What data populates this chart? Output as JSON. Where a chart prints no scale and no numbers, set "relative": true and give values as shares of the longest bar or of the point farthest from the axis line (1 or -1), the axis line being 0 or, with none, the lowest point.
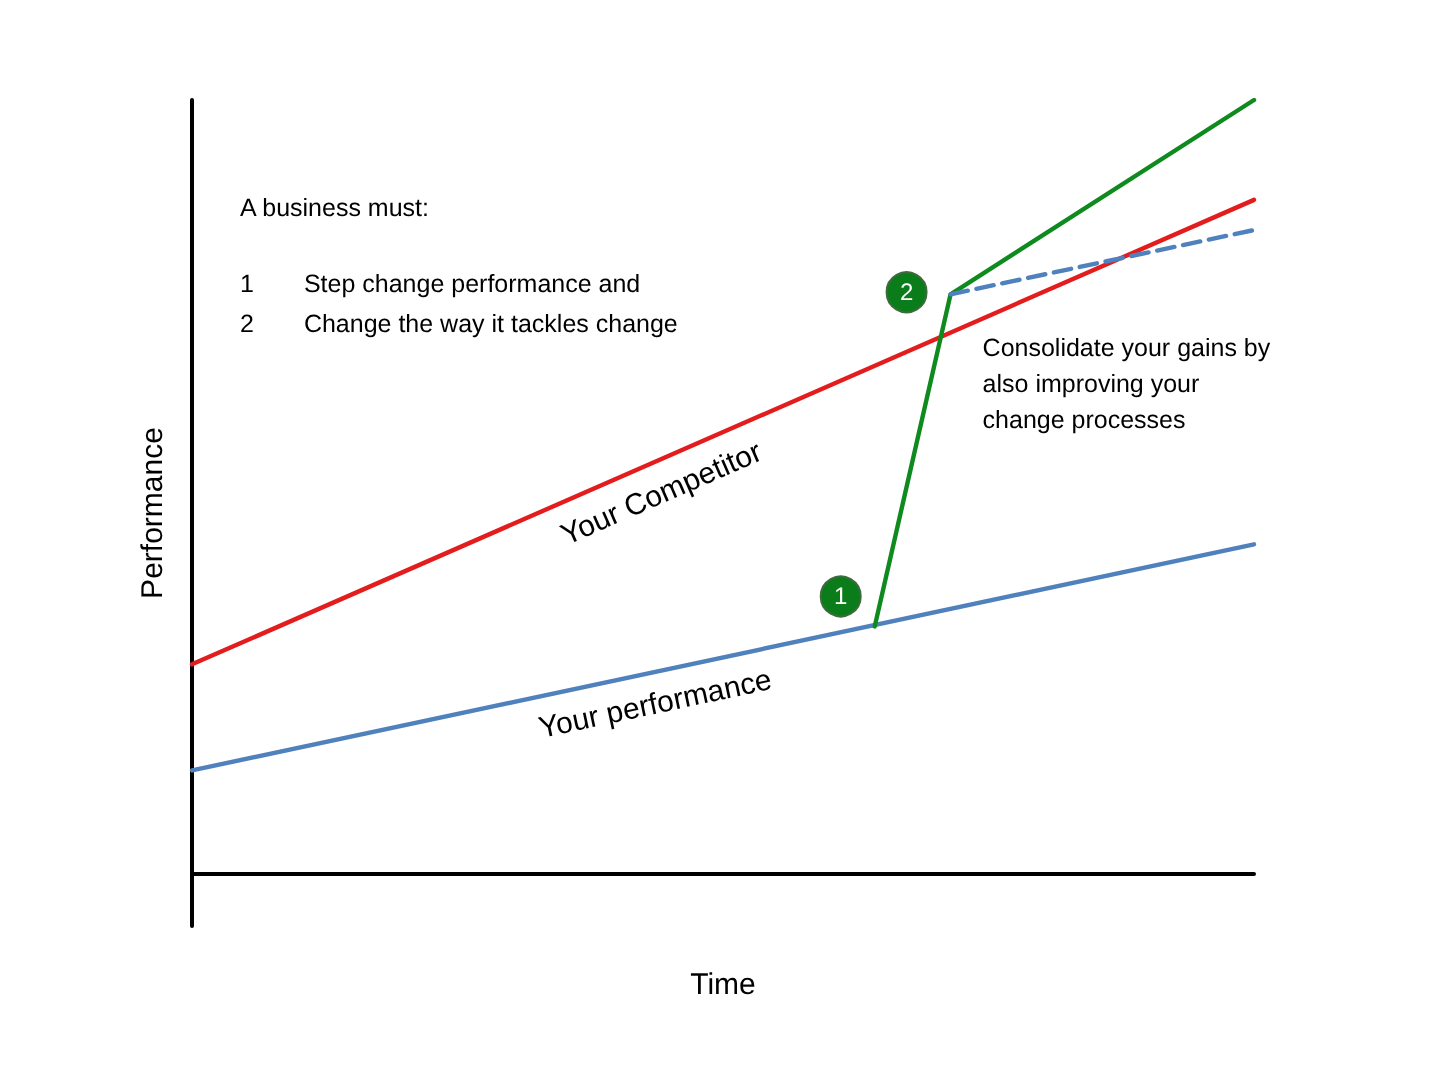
{
  "chart_data": {
    "type": "line",
    "relative": true,
    "xlabel": "Time",
    "ylabel": "Performance",
    "categories": [
      null,
      null,
      null,
      null,
      null,
      null,
      null,
      null,
      null,
      null,
      null,
      null,
      null,
      null,
      null
    ],
    "grid": false,
    "legend": false,
    "marker": "none",
    "series": [
      {
        "name": "Your Competitor",
        "color": "#e31d1d",
        "values": [
          0.271,
          null,
          null,
          null,
          null,
          null,
          null,
          null,
          null,
          null,
          null,
          null,
          null,
          null,
          0.871
        ]
      },
      {
        "name": "Your performance",
        "color": "#4f81bd",
        "values": [
          0.134,
          null,
          null,
          null,
          null,
          null,
          null,
          null,
          null,
          null,
          null,
          null,
          null,
          null,
          0.426
        ]
      },
      {
        "color": "#0f8a1e",
        "values": [
          null,
          null,
          null,
          null,
          null,
          null,
          null,
          null,
          null,
          0.32,
          0.749,
          null,
          null,
          null,
          1
        ]
      },
      {
        "color": "#4f81bd",
        "line_style": "dashed",
        "values": [
          null,
          null,
          null,
          null,
          null,
          null,
          null,
          null,
          null,
          null,
          0.749,
          null,
          null,
          null,
          0.832
        ]
      }
    ],
    "annotations": [
      "A business must:",
      "1  Step change performance and",
      "2  Change the way it tackles change",
      "Consolidate your gains by also improving your change processes",
      "1",
      "2"
    ]
  }
}
